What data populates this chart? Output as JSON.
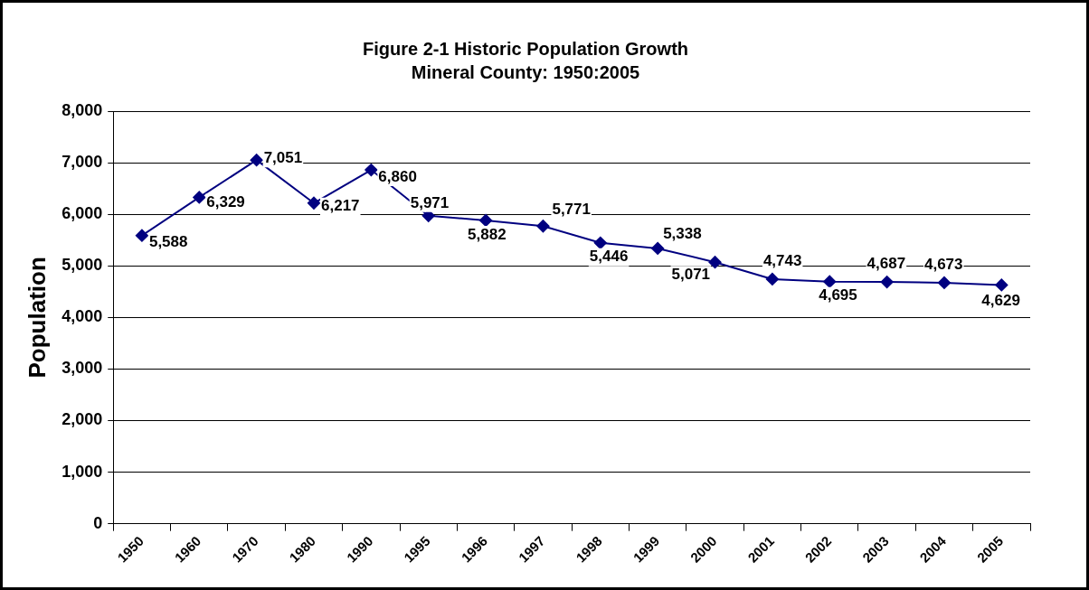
{
  "chart_data": {
    "type": "line",
    "title": "Figure 2-1 Historic Population Growth",
    "subtitle": "Mineral County: 1950:2005",
    "ylabel": "Population",
    "categories": [
      "1950",
      "1960",
      "1970",
      "1980",
      "1990",
      "1995",
      "1996",
      "1997",
      "1998",
      "1999",
      "2000",
      "2001",
      "2002",
      "2003",
      "2004",
      "2005"
    ],
    "series": [
      {
        "color": "#000080",
        "values": [
          5588,
          6329,
          7051,
          6217,
          6860,
          5971,
          5882,
          5771,
          5446,
          5338,
          5071,
          4743,
          4695,
          4687,
          4673,
          4629
        ],
        "value_labels": [
          "5,588",
          "6,329",
          "7,051",
          "6,217",
          "6,860",
          "5,971",
          "5,882",
          "5,771",
          "5,446",
          "5,338",
          "5,071",
          "4,743",
          "4,695",
          "4,687",
          "4,673",
          "4,629"
        ]
      }
    ],
    "ylim": [
      0,
      8000
    ],
    "yticks": [
      {
        "value": 0,
        "label": "0"
      },
      {
        "value": 1000,
        "label": "1,000"
      },
      {
        "value": 2000,
        "label": "2,000"
      },
      {
        "value": 3000,
        "label": "3,000"
      },
      {
        "value": 4000,
        "label": "4,000"
      },
      {
        "value": 5000,
        "label": "5,000"
      },
      {
        "value": 6000,
        "label": "6,000"
      },
      {
        "value": 7000,
        "label": "7,000"
      },
      {
        "value": 8000,
        "label": "8,000"
      }
    ],
    "grid": "y",
    "marker": "diamond",
    "line_style": "solid",
    "legend": false
  }
}
